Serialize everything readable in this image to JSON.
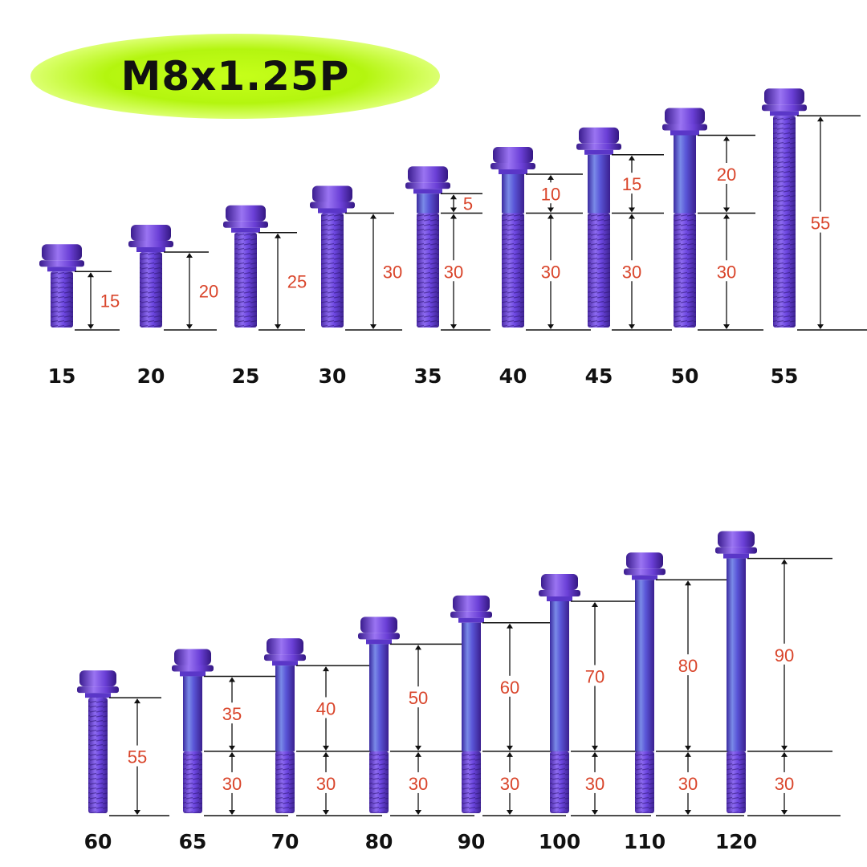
{
  "title": "M8x1.25P",
  "colors": {
    "title_highlight": "#b8f20c",
    "dimension_text": "#d9452b",
    "bolt": "#6a3fd6",
    "dimension_line": "#111111"
  },
  "rows": [
    {
      "bolts": [
        {
          "size": "15",
          "thread": "15",
          "shank": ""
        },
        {
          "size": "20",
          "thread": "20",
          "shank": ""
        },
        {
          "size": "25",
          "thread": "25",
          "shank": ""
        },
        {
          "size": "30",
          "thread": "30",
          "shank": ""
        },
        {
          "size": "35",
          "thread": "30",
          "shank": "5"
        },
        {
          "size": "40",
          "thread": "30",
          "shank": "10"
        },
        {
          "size": "45",
          "thread": "30",
          "shank": "15"
        },
        {
          "size": "50",
          "thread": "30",
          "shank": "20"
        },
        {
          "size": "55",
          "thread": "55",
          "shank": ""
        }
      ]
    },
    {
      "bolts": [
        {
          "size": "60",
          "thread": "55",
          "shank": ""
        },
        {
          "size": "65",
          "thread": "30",
          "shank": "35"
        },
        {
          "size": "70",
          "thread": "30",
          "shank": "40"
        },
        {
          "size": "80",
          "thread": "30",
          "shank": "50"
        },
        {
          "size": "90",
          "thread": "30",
          "shank": "60"
        },
        {
          "size": "100",
          "thread": "30",
          "shank": "70"
        },
        {
          "size": "110",
          "thread": "30",
          "shank": "80"
        },
        {
          "size": "120",
          "thread": "30",
          "shank": "90"
        }
      ]
    }
  ]
}
